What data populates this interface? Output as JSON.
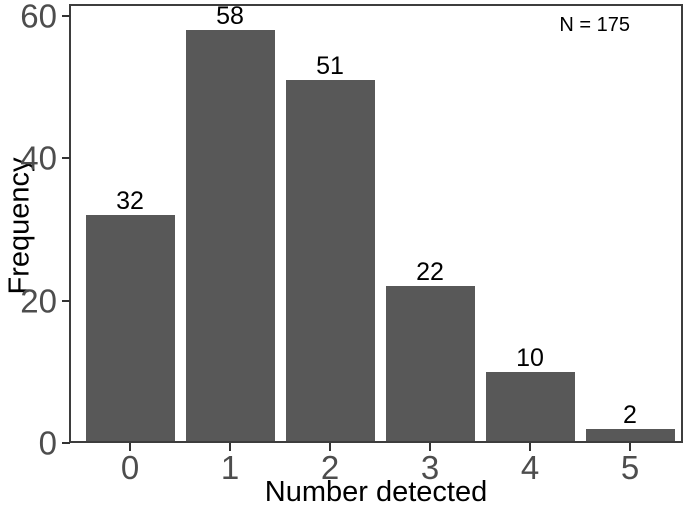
{
  "chart_data": {
    "type": "bar",
    "title": "",
    "categories": [
      "0",
      "1",
      "2",
      "3",
      "4",
      "5"
    ],
    "values": [
      32,
      58,
      51,
      22,
      10,
      2
    ],
    "bar_value_labels": [
      "32",
      "58",
      "51",
      "22",
      "10",
      "2"
    ],
    "xlabel": "Number detected",
    "ylabel": "Frequency",
    "ylim": [
      0,
      61.5
    ],
    "yticks": [
      0,
      20,
      40,
      60
    ],
    "ytick_labels": [
      "0",
      "20",
      "40",
      "60"
    ],
    "annotation": "N = 175",
    "legend_position": "none",
    "grid": false,
    "colors": {
      "bar_fill": "#585858",
      "axis_text": "#4d4d4d",
      "axis_title": "#000000",
      "value_label": "#000000",
      "panel_border": "#3d3d3d",
      "tick_mark": "#333333",
      "background": "#ffffff"
    }
  }
}
